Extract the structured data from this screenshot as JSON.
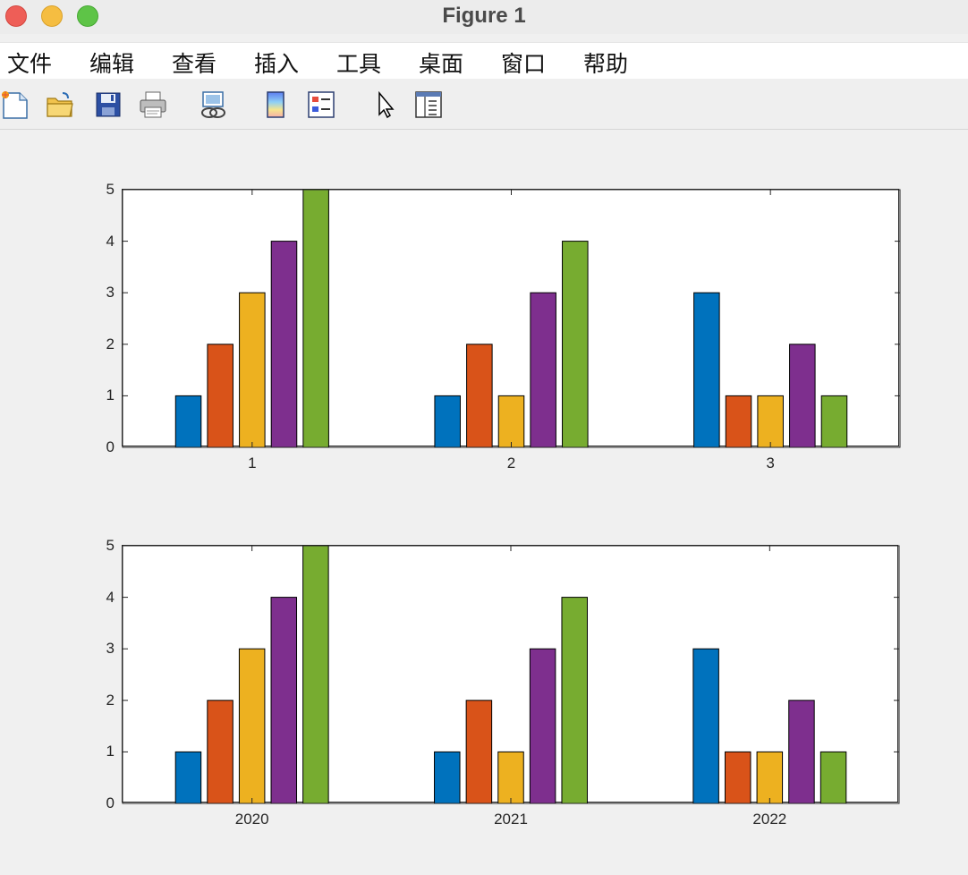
{
  "window": {
    "title": "Figure 1"
  },
  "menu": [
    {
      "label": "文件"
    },
    {
      "label": "编辑"
    },
    {
      "label": "查看"
    },
    {
      "label": "插入"
    },
    {
      "label": "工具"
    },
    {
      "label": "桌面"
    },
    {
      "label": "窗口"
    },
    {
      "label": "帮助"
    }
  ],
  "toolbar": [
    {
      "icon": "new-figure-icon"
    },
    {
      "icon": "open-file-icon"
    },
    {
      "icon": "save-icon"
    },
    {
      "icon": "print-icon"
    },
    {
      "icon": "link-icon"
    },
    {
      "icon": "colorbar-icon"
    },
    {
      "icon": "legend-icon"
    },
    {
      "icon": "edit-plot-pointer-icon"
    },
    {
      "icon": "property-inspector-icon"
    }
  ],
  "colors": {
    "series": [
      "#0072BD",
      "#D95319",
      "#EDB120",
      "#7E2F8E",
      "#77AC30"
    ],
    "figure_bg": "#f0f0f0"
  },
  "chart_data": [
    {
      "type": "bar",
      "categories": [
        "1",
        "2",
        "3"
      ],
      "series": [
        {
          "values": [
            1,
            1,
            3
          ]
        },
        {
          "values": [
            2,
            2,
            1
          ]
        },
        {
          "values": [
            3,
            1,
            1
          ]
        },
        {
          "values": [
            4,
            3,
            2
          ]
        },
        {
          "values": [
            5,
            4,
            1
          ]
        }
      ],
      "yticks": [
        "0",
        "1",
        "2",
        "3",
        "4",
        "5"
      ],
      "ylim": [
        0,
        5
      ],
      "grid": false
    },
    {
      "type": "bar",
      "categories": [
        "2020",
        "2021",
        "2022"
      ],
      "series": [
        {
          "values": [
            1,
            1,
            3
          ]
        },
        {
          "values": [
            2,
            2,
            1
          ]
        },
        {
          "values": [
            3,
            1,
            1
          ]
        },
        {
          "values": [
            4,
            3,
            2
          ]
        },
        {
          "values": [
            5,
            4,
            1
          ]
        }
      ],
      "yticks": [
        "0",
        "1",
        "2",
        "3",
        "4",
        "5"
      ],
      "ylim": [
        0,
        5
      ],
      "grid": false
    }
  ]
}
